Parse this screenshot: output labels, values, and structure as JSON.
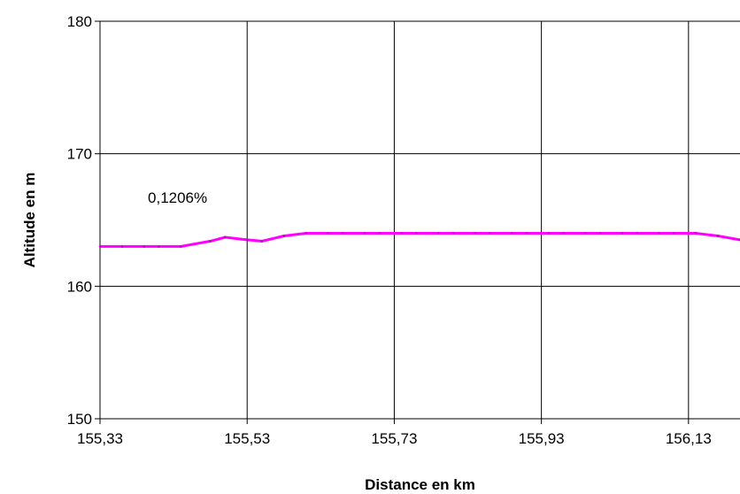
{
  "chart_data": {
    "type": "line",
    "xlabel": "Distance en km",
    "ylabel": "Altitude en m",
    "xlim": [
      155.33,
      156.2
    ],
    "ylim": [
      150,
      180
    ],
    "x_ticks": [
      155.33,
      155.53,
      155.73,
      155.93,
      156.13
    ],
    "x_tick_labels": [
      "155,33",
      "155,53",
      "155,73",
      "155,93",
      "156,13"
    ],
    "y_ticks": [
      150,
      160,
      170,
      180
    ],
    "y_tick_labels": [
      "150",
      "160",
      "170",
      "180"
    ],
    "grid": true,
    "line_color": "#ff00ff",
    "series": [
      {
        "x": [
          155.33,
          155.36,
          155.39,
          155.41,
          155.44,
          155.48,
          155.5,
          155.53,
          155.55,
          155.58,
          155.61,
          155.64,
          155.66,
          155.69,
          155.71,
          155.74,
          155.76,
          155.79,
          155.81,
          155.84,
          155.86,
          155.89,
          155.91,
          155.94,
          155.96,
          155.99,
          156.01,
          156.04,
          156.06,
          156.09,
          156.11,
          156.14,
          156.17,
          156.2
        ],
        "y": [
          163.0,
          163.0,
          163.0,
          163.0,
          163.0,
          163.4,
          163.7,
          163.5,
          163.4,
          163.8,
          164.0,
          164.0,
          164.0,
          164.0,
          164.0,
          164.0,
          164.0,
          164.0,
          164.0,
          164.0,
          164.0,
          164.0,
          164.0,
          164.0,
          164.0,
          164.0,
          164.0,
          164.0,
          164.0,
          164.0,
          164.0,
          164.0,
          163.8,
          163.5
        ]
      }
    ],
    "annotations": [
      {
        "text": "0,1206%",
        "x": 155.395,
        "y": 166.3
      }
    ]
  }
}
